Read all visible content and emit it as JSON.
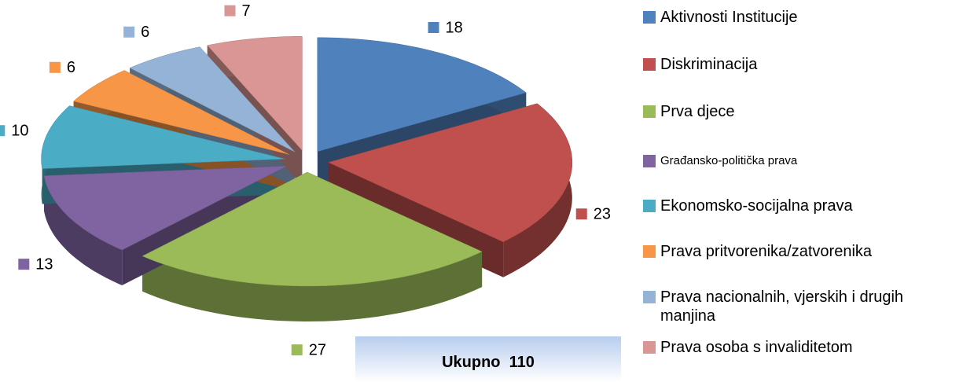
{
  "chart_data": {
    "type": "pie",
    "categories": [
      "Aktivnosti Institucije",
      "Diskriminacija",
      "Prva djece",
      "Građansko-politička prava",
      "Ekonomsko-socijalna prava",
      "Prava pritvorenika/zatvorenika",
      "Prava nacionalnih, vjerskih i drugih manjina",
      "Prava osoba s invaliditetom"
    ],
    "values": [
      18,
      23,
      27,
      13,
      10,
      6,
      6,
      7
    ],
    "colors": [
      "#4f81bd",
      "#c0504d",
      "#9bbb59",
      "#8064a2",
      "#4bacc6",
      "#f79646",
      "#95b3d7",
      "#d99694"
    ],
    "annotation": "Ukupno  110"
  }
}
